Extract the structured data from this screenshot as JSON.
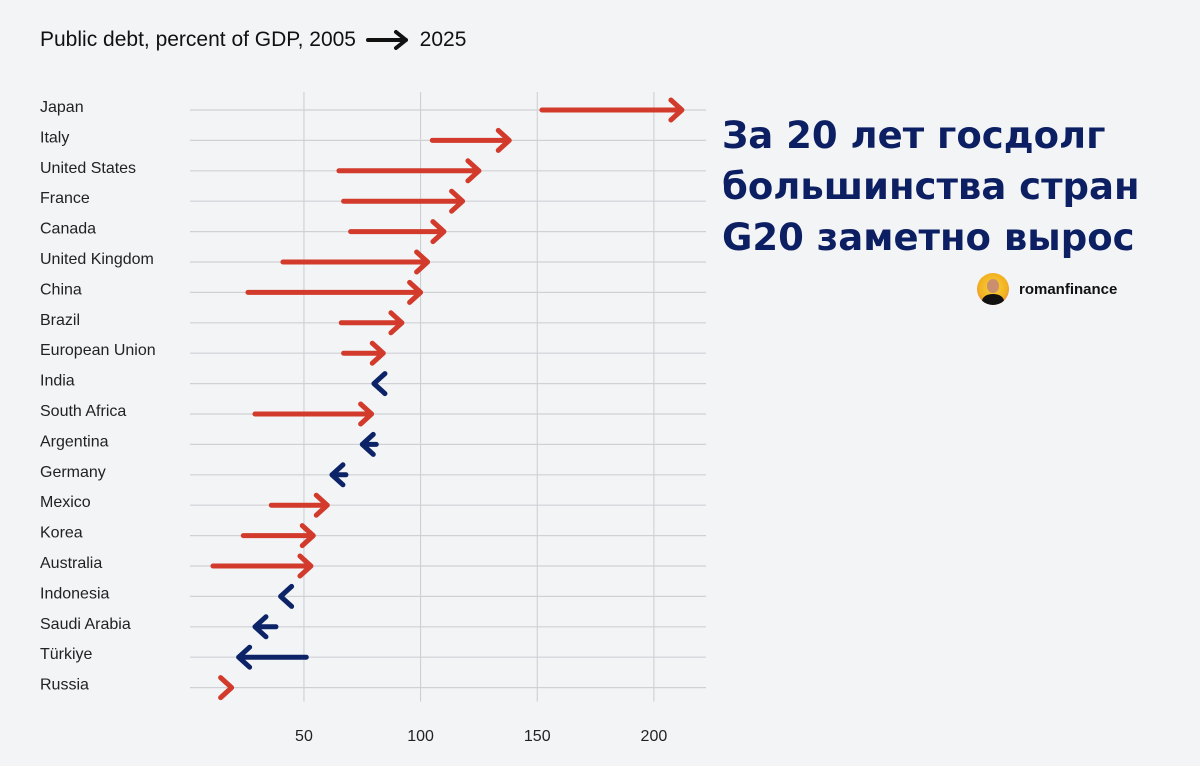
{
  "chart_data": {
    "type": "arrow",
    "title_parts": [
      "Public debt, percent of GDP, 2005",
      "2025"
    ],
    "from_label": "2005",
    "to_label": "2025",
    "xlim": [
      1,
      222
    ],
    "xticks": [
      50,
      100,
      150,
      200
    ],
    "grid": true,
    "colors": {
      "increase": "#d23a2b",
      "decrease": "#0d2368"
    },
    "series": [
      {
        "country": "Japan",
        "v2005": 152,
        "v2025": 212
      },
      {
        "country": "Italy",
        "v2005": 105,
        "v2025": 138
      },
      {
        "country": "United States",
        "v2005": 65,
        "v2025": 125
      },
      {
        "country": "France",
        "v2005": 67,
        "v2025": 118
      },
      {
        "country": "Canada",
        "v2005": 70,
        "v2025": 110
      },
      {
        "country": "United Kingdom",
        "v2005": 41,
        "v2025": 103
      },
      {
        "country": "China",
        "v2005": 26,
        "v2025": 100
      },
      {
        "country": "Brazil",
        "v2005": 66,
        "v2025": 92
      },
      {
        "country": "European Union",
        "v2005": 67,
        "v2025": 84
      },
      {
        "country": "India",
        "v2005": 84,
        "v2025": 80
      },
      {
        "country": "South Africa",
        "v2005": 29,
        "v2025": 79
      },
      {
        "country": "Argentina",
        "v2005": 81,
        "v2025": 75
      },
      {
        "country": "Germany",
        "v2005": 68,
        "v2025": 62
      },
      {
        "country": "Mexico",
        "v2005": 36,
        "v2025": 60
      },
      {
        "country": "Korea",
        "v2005": 24,
        "v2025": 54
      },
      {
        "country": "Australia",
        "v2005": 11,
        "v2025": 53
      },
      {
        "country": "Indonesia",
        "v2005": 43,
        "v2025": 40
      },
      {
        "country": "Saudi Arabia",
        "v2005": 38,
        "v2025": 29
      },
      {
        "country": "Türkiye",
        "v2005": 51,
        "v2025": 22
      },
      {
        "country": "Russia",
        "v2005": 15,
        "v2025": 19
      }
    ]
  },
  "headline": "За 20 лет госдолг большинства стран G20 заметно вырос",
  "author": {
    "name": "romanfinance",
    "avatar_icon": "person-photo"
  }
}
